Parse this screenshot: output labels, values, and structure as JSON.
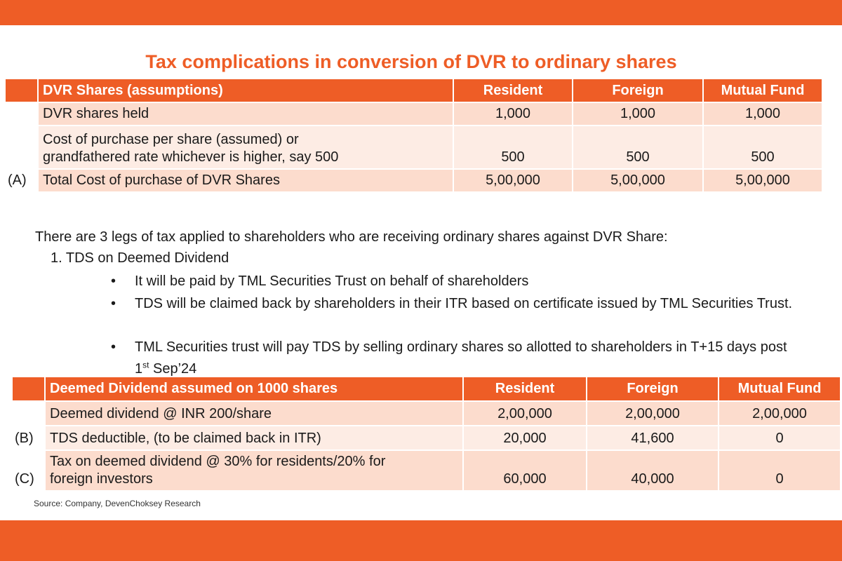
{
  "title": "Tax complications in conversion of DVR to ordinary shares",
  "table1": {
    "header": {
      "label": "",
      "name": "DVR Shares (assumptions)",
      "cols": [
        "Resident",
        "Foreign",
        "Mutual Fund"
      ]
    },
    "rows": [
      {
        "label": "",
        "name": "DVR shares held",
        "values": [
          "1,000",
          "1,000",
          "1,000"
        ]
      },
      {
        "label": "",
        "name_line1": "Cost of purchase per share (assumed) or",
        "name_line2": "grandfathered rate whichever is higher, say 500",
        "values": [
          "500",
          "500",
          "500"
        ]
      },
      {
        "label": "(A)",
        "name": "Total Cost of purchase of DVR Shares",
        "values": [
          "5,00,000",
          "5,00,000",
          "5,00,000"
        ]
      }
    ]
  },
  "intro": "There are 3 legs of tax applied to shareholders who are receiving ordinary shares against DVR Share:",
  "list_item": "1.  TDS on Deemed Dividend",
  "bullets": {
    "symbol": "•",
    "b1": "It will be paid by TML Securities Trust on behalf of shareholders",
    "b2": "TDS will be claimed back by shareholders in their ITR based on certificate issued by TML Securities Trust.",
    "b3_main": "TML Securities trust will pay TDS by selling ordinary shares so allotted to shareholders in T+15 days post 1",
    "b3_sup": "st",
    "b3_end": " Sep’24"
  },
  "table2": {
    "header": {
      "label": "",
      "name": "Deemed Dividend assumed on 1000 shares",
      "cols": [
        "Resident",
        "Foreign",
        "Mutual Fund"
      ]
    },
    "rows": [
      {
        "label": "",
        "name": "Deemed dividend @ INR 200/share",
        "values": [
          "2,00,000",
          "2,00,000",
          "2,00,000"
        ]
      },
      {
        "label": "(B)",
        "name": "TDS deductible, (to be claimed back in ITR)",
        "values": [
          "20,000",
          "41,600",
          "0"
        ]
      },
      {
        "label": "(C)",
        "name_line1": "Tax on deemed dividend @ 30% for residents/20% for",
        "name_line2": "foreign investors",
        "values": [
          "60,000",
          "40,000",
          "0"
        ]
      }
    ]
  },
  "source": "Source: Company, DevenChoksey Research"
}
